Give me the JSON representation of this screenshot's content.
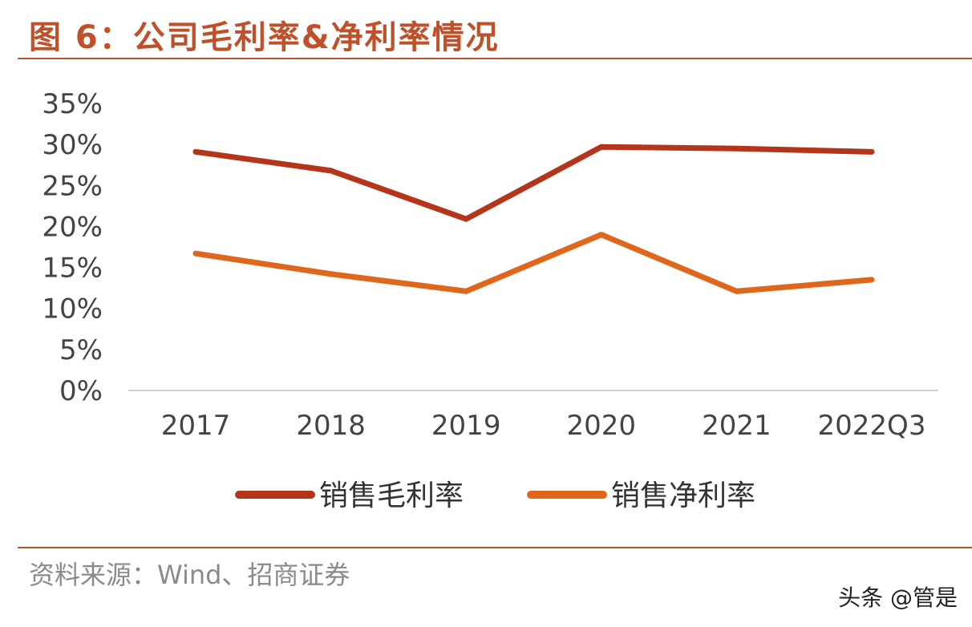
{
  "title": "图 6：公司毛利率&净利率情况",
  "source": "资料来源：Wind、招商证券",
  "watermark": "头条 @管是",
  "colors": {
    "title": "#c0502a",
    "gross": "#b5351a",
    "net": "#e0661c"
  },
  "chart_data": {
    "type": "line",
    "categories": [
      "2017",
      "2018",
      "2019",
      "2020",
      "2021",
      "2022Q3"
    ],
    "yticks": [
      "0%",
      "5%",
      "10%",
      "15%",
      "20%",
      "25%",
      "30%",
      "35%"
    ],
    "ylim": [
      0,
      35
    ],
    "grid": false,
    "legend": "bottom",
    "series": [
      {
        "name": "销售毛利率",
        "values": [
          29.1,
          26.8,
          20.9,
          29.7,
          29.5,
          29.1
        ]
      },
      {
        "name": "销售净利率",
        "values": [
          16.7,
          14.2,
          12.1,
          19.0,
          12.1,
          13.5
        ]
      }
    ]
  }
}
